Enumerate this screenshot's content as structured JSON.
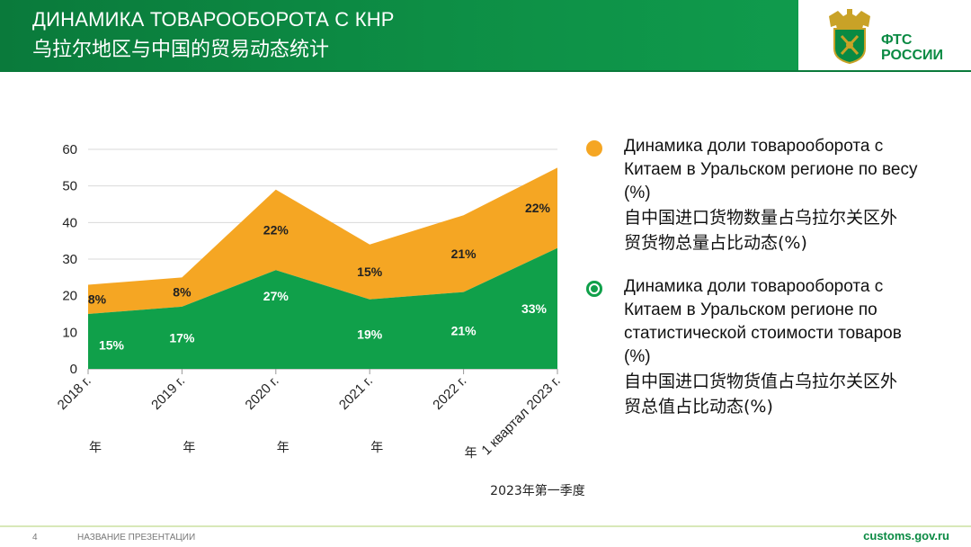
{
  "header": {
    "title_ru": "ДИНАМИКА ТОВАРООБОРОТА С КНР",
    "title_cn": "乌拉尔地区与中国的贸易动态统计",
    "brand_line1": "ФТС",
    "brand_line2": "РОССИИ"
  },
  "colors": {
    "green": "#10a04a",
    "orange": "#f5a623",
    "header_green": "#0a7a3b"
  },
  "chart_data": {
    "type": "area",
    "stacked": true,
    "categories": [
      "2018 г.",
      "2019 г.",
      "2020 г.",
      "2021 г.",
      "2022 г.",
      "1 квартал 2023 г."
    ],
    "category_sublabels": [
      "年",
      "年",
      "年",
      "年",
      "年",
      "2023年第一季度"
    ],
    "series": [
      {
        "name": "Динамика доли товарооборота с Китаем в Уральском регионе по статистической стоимости товаров (%)",
        "color": "#10a04a",
        "values": [
          15,
          17,
          27,
          19,
          21,
          33
        ],
        "labels": [
          "15%",
          "17%",
          "27%",
          "19%",
          "21%",
          "33%"
        ]
      },
      {
        "name": "Динамика доли товарооборота с Китаем в Уральском регионе по весу (%)",
        "color": "#f5a623",
        "values": [
          8,
          8,
          22,
          15,
          21,
          22
        ],
        "labels": [
          "8%",
          "8%",
          "22%",
          "15%",
          "21%",
          "22%"
        ]
      }
    ],
    "yticks": [
      0,
      10,
      20,
      30,
      40,
      50,
      60
    ],
    "ylim": [
      0,
      60
    ],
    "grid": true
  },
  "legend": [
    {
      "ru": "Динамика доли товарооборота с Китаем в Уральском регионе по весу  (%)",
      "cn": "自中国进口货物数量占乌拉尔关区外贸货物总量占比动态(%)",
      "marker": "circle"
    },
    {
      "ru": "Динамика доли товарооборота с Китаем в Уральском регионе по статистической стоимости товаров  (%)",
      "cn": "自中国进口货物货值占乌拉尔关区外贸总值占比动态(%)",
      "marker": "ring"
    }
  ],
  "footer": {
    "page": "4",
    "name": "НАЗВАНИЕ ПРЕЗЕНТАЦИИ",
    "site": "customs.gov.ru"
  }
}
